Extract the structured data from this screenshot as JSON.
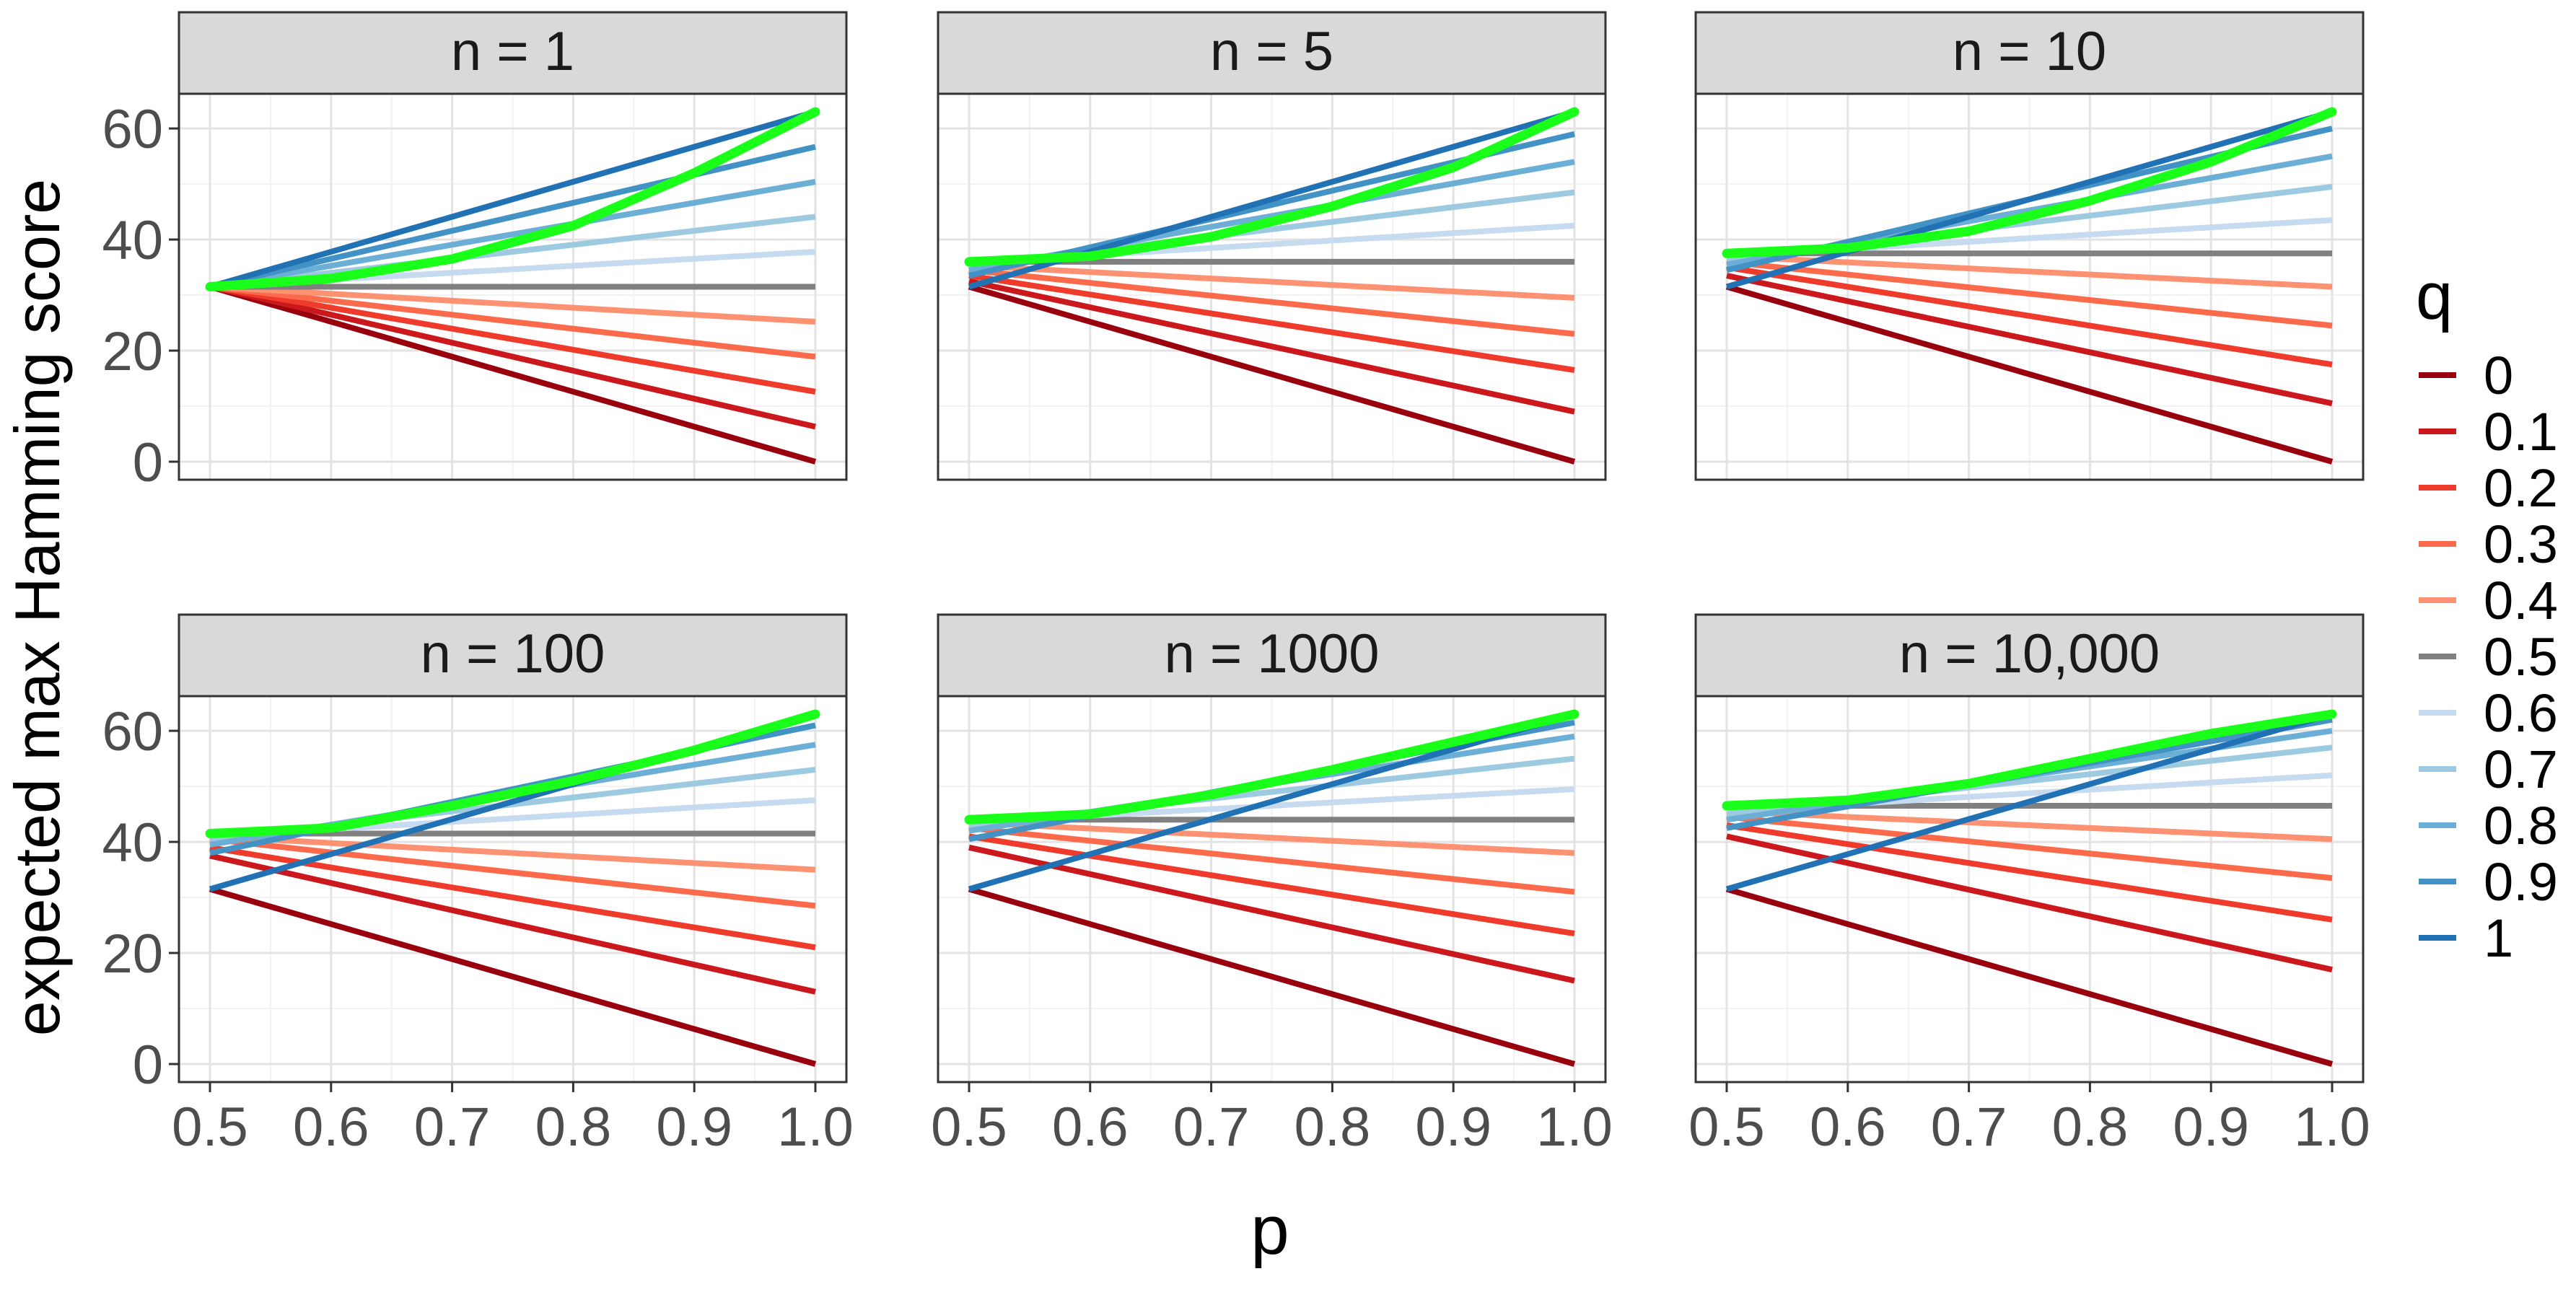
{
  "chart_data": {
    "type": "line",
    "xlabel": "p",
    "ylabel": "expected max Hamming score",
    "xlim": [
      0.5,
      1.0
    ],
    "ylim": [
      0,
      63
    ],
    "x_ticks": [
      "0.5",
      "0.6",
      "0.7",
      "0.8",
      "0.9",
      "1.0"
    ],
    "y_ticks": [
      "0",
      "20",
      "40",
      "60"
    ],
    "legend": {
      "title": "q",
      "position": "right",
      "entries": [
        {
          "label": "0",
          "color": "#99000d"
        },
        {
          "label": "0.1",
          "color": "#cb181d"
        },
        {
          "label": "0.2",
          "color": "#ef3b2c"
        },
        {
          "label": "0.3",
          "color": "#fb6a4a"
        },
        {
          "label": "0.4",
          "color": "#fc9272"
        },
        {
          "label": "0.5",
          "color": "#808080"
        },
        {
          "label": "0.6",
          "color": "#c6dbef"
        },
        {
          "label": "0.7",
          "color": "#9ecae1"
        },
        {
          "label": "0.8",
          "color": "#6baed6"
        },
        {
          "label": "0.9",
          "color": "#4292c6"
        },
        {
          "label": "1",
          "color": "#2171b5"
        }
      ]
    },
    "highlight_color": "#1aff1a",
    "panels": [
      {
        "title": "n = 1",
        "series": [
          {
            "q": "0",
            "points": [
              [
                0.5,
                31.5
              ],
              [
                1.0,
                0
              ]
            ]
          },
          {
            "q": "0.1",
            "points": [
              [
                0.5,
                31.5
              ],
              [
                1.0,
                6.3
              ]
            ]
          },
          {
            "q": "0.2",
            "points": [
              [
                0.5,
                31.5
              ],
              [
                1.0,
                12.6
              ]
            ]
          },
          {
            "q": "0.3",
            "points": [
              [
                0.5,
                31.5
              ],
              [
                1.0,
                18.9
              ]
            ]
          },
          {
            "q": "0.4",
            "points": [
              [
                0.5,
                31.5
              ],
              [
                1.0,
                25.2
              ]
            ]
          },
          {
            "q": "0.5",
            "points": [
              [
                0.5,
                31.5
              ],
              [
                1.0,
                31.5
              ]
            ]
          },
          {
            "q": "0.6",
            "points": [
              [
                0.5,
                31.5
              ],
              [
                1.0,
                37.8
              ]
            ]
          },
          {
            "q": "0.7",
            "points": [
              [
                0.5,
                31.5
              ],
              [
                1.0,
                44.1
              ]
            ]
          },
          {
            "q": "0.8",
            "points": [
              [
                0.5,
                31.5
              ],
              [
                1.0,
                50.4
              ]
            ]
          },
          {
            "q": "0.9",
            "points": [
              [
                0.5,
                31.5
              ],
              [
                1.0,
                56.7
              ]
            ]
          },
          {
            "q": "1",
            "points": [
              [
                0.5,
                31.5
              ],
              [
                1.0,
                63
              ]
            ]
          }
        ],
        "max_curve": [
          [
            0.5,
            31.5
          ],
          [
            0.6,
            33
          ],
          [
            0.7,
            36.5
          ],
          [
            0.8,
            42.5
          ],
          [
            0.9,
            52
          ],
          [
            1.0,
            63
          ]
        ]
      },
      {
        "title": "n = 5",
        "series": [
          {
            "q": "0",
            "points": [
              [
                0.5,
                31.5
              ],
              [
                1.0,
                0
              ]
            ]
          },
          {
            "q": "0.1",
            "points": [
              [
                0.5,
                32.5
              ],
              [
                1.0,
                9
              ]
            ]
          },
          {
            "q": "0.2",
            "points": [
              [
                0.5,
                33.5
              ],
              [
                1.0,
                16.5
              ]
            ]
          },
          {
            "q": "0.3",
            "points": [
              [
                0.5,
                34.5
              ],
              [
                1.0,
                23
              ]
            ]
          },
          {
            "q": "0.4",
            "points": [
              [
                0.5,
                35.3
              ],
              [
                1.0,
                29.5
              ]
            ]
          },
          {
            "q": "0.5",
            "points": [
              [
                0.5,
                36
              ],
              [
                1.0,
                36
              ]
            ]
          },
          {
            "q": "0.6",
            "points": [
              [
                0.5,
                35.8
              ],
              [
                1.0,
                42.5
              ]
            ]
          },
          {
            "q": "0.7",
            "points": [
              [
                0.5,
                35.2
              ],
              [
                1.0,
                48.5
              ]
            ]
          },
          {
            "q": "0.8",
            "points": [
              [
                0.5,
                34.5
              ],
              [
                1.0,
                54
              ]
            ]
          },
          {
            "q": "0.9",
            "points": [
              [
                0.5,
                33.5
              ],
              [
                1.0,
                59
              ]
            ]
          },
          {
            "q": "1",
            "points": [
              [
                0.5,
                31.5
              ],
              [
                1.0,
                63
              ]
            ]
          }
        ],
        "max_curve": [
          [
            0.5,
            36
          ],
          [
            0.6,
            37
          ],
          [
            0.7,
            40.5
          ],
          [
            0.8,
            46
          ],
          [
            0.9,
            53
          ],
          [
            1.0,
            63
          ]
        ]
      },
      {
        "title": "n = 10",
        "series": [
          {
            "q": "0",
            "points": [
              [
                0.5,
                31.5
              ],
              [
                1.0,
                0
              ]
            ]
          },
          {
            "q": "0.1",
            "points": [
              [
                0.5,
                33.5
              ],
              [
                1.0,
                10.5
              ]
            ]
          },
          {
            "q": "0.2",
            "points": [
              [
                0.5,
                35
              ],
              [
                1.0,
                17.5
              ]
            ]
          },
          {
            "q": "0.3",
            "points": [
              [
                0.5,
                36
              ],
              [
                1.0,
                24.5
              ]
            ]
          },
          {
            "q": "0.4",
            "points": [
              [
                0.5,
                37
              ],
              [
                1.0,
                31.5
              ]
            ]
          },
          {
            "q": "0.5",
            "points": [
              [
                0.5,
                37.5
              ],
              [
                1.0,
                37.5
              ]
            ]
          },
          {
            "q": "0.6",
            "points": [
              [
                0.5,
                37
              ],
              [
                1.0,
                43.5
              ]
            ]
          },
          {
            "q": "0.7",
            "points": [
              [
                0.5,
                36.5
              ],
              [
                1.0,
                49.5
              ]
            ]
          },
          {
            "q": "0.8",
            "points": [
              [
                0.5,
                35.5
              ],
              [
                1.0,
                55
              ]
            ]
          },
          {
            "q": "0.9",
            "points": [
              [
                0.5,
                34.5
              ],
              [
                1.0,
                60
              ]
            ]
          },
          {
            "q": "1",
            "points": [
              [
                0.5,
                31.5
              ],
              [
                1.0,
                63
              ]
            ]
          }
        ],
        "max_curve": [
          [
            0.5,
            37.5
          ],
          [
            0.6,
            38.5
          ],
          [
            0.7,
            41.5
          ],
          [
            0.8,
            47
          ],
          [
            0.9,
            54
          ],
          [
            1.0,
            63
          ]
        ]
      },
      {
        "title": "n = 100",
        "series": [
          {
            "q": "0",
            "points": [
              [
                0.5,
                31.5
              ],
              [
                1.0,
                0
              ]
            ]
          },
          {
            "q": "0.1",
            "points": [
              [
                0.5,
                37.5
              ],
              [
                1.0,
                13
              ]
            ]
          },
          {
            "q": "0.2",
            "points": [
              [
                0.5,
                39
              ],
              [
                1.0,
                21
              ]
            ]
          },
          {
            "q": "0.3",
            "points": [
              [
                0.5,
                40.5
              ],
              [
                1.0,
                28.5
              ]
            ]
          },
          {
            "q": "0.4",
            "points": [
              [
                0.5,
                41
              ],
              [
                1.0,
                35
              ]
            ]
          },
          {
            "q": "0.5",
            "points": [
              [
                0.5,
                41.5
              ],
              [
                1.0,
                41.5
              ]
            ]
          },
          {
            "q": "0.6",
            "points": [
              [
                0.5,
                41
              ],
              [
                1.0,
                47.5
              ]
            ]
          },
          {
            "q": "0.7",
            "points": [
              [
                0.5,
                40.5
              ],
              [
                1.0,
                53
              ]
            ]
          },
          {
            "q": "0.8",
            "points": [
              [
                0.5,
                39.5
              ],
              [
                1.0,
                57.5
              ]
            ]
          },
          {
            "q": "0.9",
            "points": [
              [
                0.5,
                38
              ],
              [
                1.0,
                61
              ]
            ]
          },
          {
            "q": "1",
            "points": [
              [
                0.5,
                31.5
              ],
              [
                1.0,
                63
              ]
            ]
          }
        ],
        "max_curve": [
          [
            0.5,
            41.5
          ],
          [
            0.6,
            42.5
          ],
          [
            0.7,
            46.5
          ],
          [
            0.8,
            51
          ],
          [
            0.9,
            56.5
          ],
          [
            1.0,
            63
          ]
        ]
      },
      {
        "title": "n = 1000",
        "series": [
          {
            "q": "0",
            "points": [
              [
                0.5,
                31.5
              ],
              [
                1.0,
                0
              ]
            ]
          },
          {
            "q": "0.1",
            "points": [
              [
                0.5,
                39
              ],
              [
                1.0,
                15
              ]
            ]
          },
          {
            "q": "0.2",
            "points": [
              [
                0.5,
                41
              ],
              [
                1.0,
                23.5
              ]
            ]
          },
          {
            "q": "0.3",
            "points": [
              [
                0.5,
                42.5
              ],
              [
                1.0,
                31
              ]
            ]
          },
          {
            "q": "0.4",
            "points": [
              [
                0.5,
                43.5
              ],
              [
                1.0,
                38
              ]
            ]
          },
          {
            "q": "0.5",
            "points": [
              [
                0.5,
                44
              ],
              [
                1.0,
                44
              ]
            ]
          },
          {
            "q": "0.6",
            "points": [
              [
                0.5,
                43.5
              ],
              [
                1.0,
                49.5
              ]
            ]
          },
          {
            "q": "0.7",
            "points": [
              [
                0.5,
                43
              ],
              [
                1.0,
                55
              ]
            ]
          },
          {
            "q": "0.8",
            "points": [
              [
                0.5,
                42
              ],
              [
                1.0,
                59
              ]
            ]
          },
          {
            "q": "0.9",
            "points": [
              [
                0.5,
                40.5
              ],
              [
                1.0,
                61.5
              ]
            ]
          },
          {
            "q": "1",
            "points": [
              [
                0.5,
                31.5
              ],
              [
                1.0,
                63
              ]
            ]
          }
        ],
        "max_curve": [
          [
            0.5,
            44
          ],
          [
            0.6,
            45
          ],
          [
            0.7,
            48.5
          ],
          [
            0.8,
            53
          ],
          [
            0.9,
            58
          ],
          [
            1.0,
            63
          ]
        ]
      },
      {
        "title": "n = 10,000",
        "series": [
          {
            "q": "0",
            "points": [
              [
                0.5,
                31.5
              ],
              [
                1.0,
                0
              ]
            ]
          },
          {
            "q": "0.1",
            "points": [
              [
                0.5,
                41
              ],
              [
                1.0,
                17
              ]
            ]
          },
          {
            "q": "0.2",
            "points": [
              [
                0.5,
                43
              ],
              [
                1.0,
                26
              ]
            ]
          },
          {
            "q": "0.3",
            "points": [
              [
                0.5,
                44.5
              ],
              [
                1.0,
                33.5
              ]
            ]
          },
          {
            "q": "0.4",
            "points": [
              [
                0.5,
                45.5
              ],
              [
                1.0,
                40.5
              ]
            ]
          },
          {
            "q": "0.5",
            "points": [
              [
                0.5,
                46.5
              ],
              [
                1.0,
                46.5
              ]
            ]
          },
          {
            "q": "0.6",
            "points": [
              [
                0.5,
                45.5
              ],
              [
                1.0,
                52
              ]
            ]
          },
          {
            "q": "0.7",
            "points": [
              [
                0.5,
                45
              ],
              [
                1.0,
                57
              ]
            ]
          },
          {
            "q": "0.8",
            "points": [
              [
                0.5,
                44
              ],
              [
                1.0,
                60
              ]
            ]
          },
          {
            "q": "0.9",
            "points": [
              [
                0.5,
                42.5
              ],
              [
                1.0,
                62
              ]
            ]
          },
          {
            "q": "1",
            "points": [
              [
                0.5,
                31.5
              ],
              [
                1.0,
                63
              ]
            ]
          }
        ],
        "max_curve": [
          [
            0.5,
            46.5
          ],
          [
            0.6,
            47.5
          ],
          [
            0.7,
            50.5
          ],
          [
            0.8,
            55
          ],
          [
            0.9,
            59.5
          ],
          [
            1.0,
            63
          ]
        ]
      }
    ]
  }
}
